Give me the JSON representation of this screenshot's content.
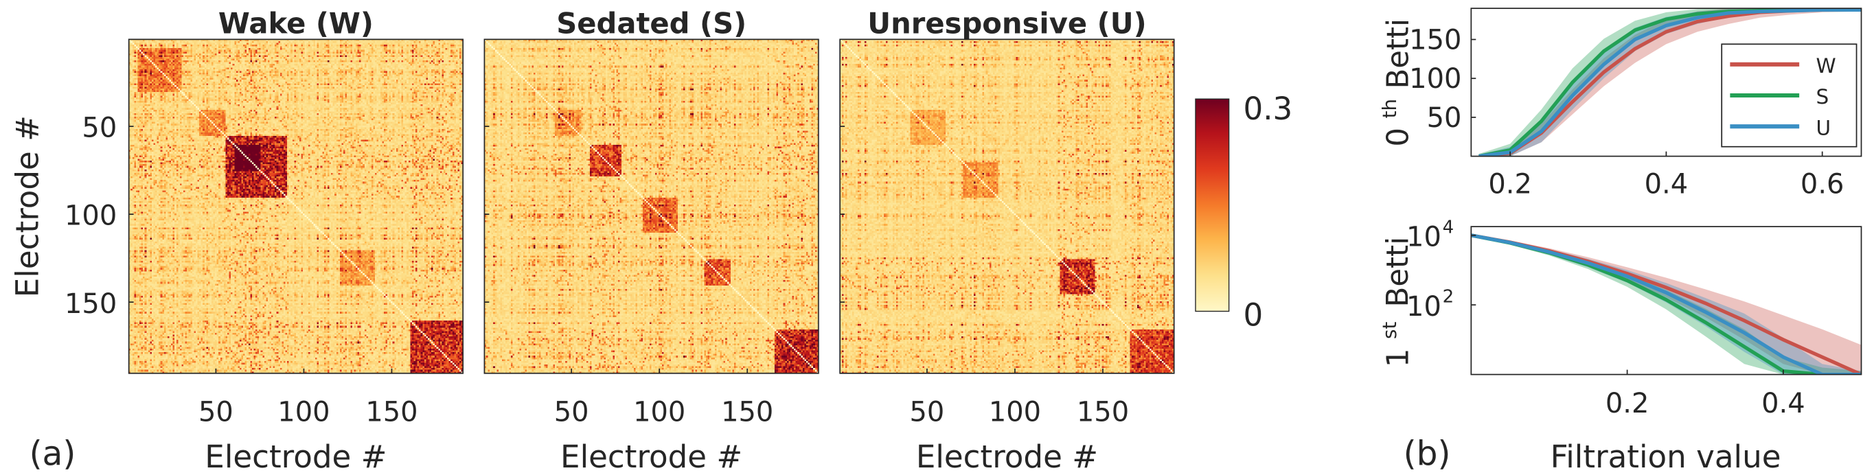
{
  "chart_data": [
    {
      "type": "heatmap",
      "panel": "(a)",
      "titles": [
        "Wake (W)",
        "Sedated (S)",
        "Unresponsive (U)"
      ],
      "xlabel": "Electrode #",
      "ylabel": "Electrode #",
      "x_ticks": [
        50,
        100,
        150
      ],
      "y_ticks": [
        50,
        100,
        150
      ],
      "n_electrodes": 190,
      "colorbar": {
        "min": 0,
        "max": 0.3,
        "tick_labels": [
          "0",
          "0.3"
        ],
        "colors": [
          "#fff8c8",
          "#fde08a",
          "#fdb44a",
          "#f57a2a",
          "#e03a1e",
          "#b5121b",
          "#6e0020"
        ]
      },
      "matrices": [
        {
          "name": "Wake (W)",
          "seed": 7,
          "blocks": [
            [
              55,
              90,
              0.26
            ],
            [
              60,
              75,
              0.22
            ],
            [
              160,
              190,
              0.24
            ],
            [
              5,
              30,
              0.14
            ],
            [
              120,
              140,
              0.1
            ],
            [
              40,
              55,
              0.12
            ]
          ]
        },
        {
          "name": "Sedated (S)",
          "seed": 23,
          "blocks": [
            [
              60,
              78,
              0.22
            ],
            [
              90,
              110,
              0.16
            ],
            [
              165,
              190,
              0.26
            ],
            [
              125,
              140,
              0.18
            ],
            [
              40,
              55,
              0.1
            ]
          ]
        },
        {
          "name": "Unresponsive (U)",
          "seed": 41,
          "blocks": [
            [
              125,
              145,
              0.24
            ],
            [
              165,
              190,
              0.2
            ],
            [
              70,
              90,
              0.1
            ],
            [
              40,
              60,
              0.08
            ]
          ]
        }
      ]
    },
    {
      "type": "area",
      "panel": "(b)",
      "ylabel": "0th Betti",
      "ylabel_main": "0",
      "ylabel_sup": "th",
      "ylabel_rest": "Betti",
      "xlim": [
        0.15,
        0.65
      ],
      "ylim": [
        0,
        190
      ],
      "x_ticks": [
        0.2,
        0.4,
        0.6
      ],
      "x_tick_labels": [
        "0.2",
        "0.4",
        "0.6"
      ],
      "y_ticks": [
        50,
        100,
        150
      ],
      "y_tick_labels": [
        "50",
        "100",
        "150"
      ],
      "legend": [
        "W",
        "S",
        "U"
      ],
      "x": [
        0.16,
        0.2,
        0.24,
        0.28,
        0.32,
        0.36,
        0.4,
        0.44,
        0.48,
        0.52,
        0.56,
        0.6,
        0.65
      ],
      "series": [
        {
          "name": "W",
          "color": "#c8524a",
          "values": [
            0,
            4,
            30,
            70,
            108,
            138,
            160,
            173,
            180,
            185,
            187,
            188,
            188
          ],
          "band": [
            2,
            6,
            12,
            16,
            18,
            18,
            16,
            13,
            10,
            7,
            5,
            3,
            2
          ]
        },
        {
          "name": "S",
          "color": "#22a055",
          "values": [
            0,
            8,
            45,
            95,
            135,
            162,
            176,
            183,
            186,
            187,
            188,
            188,
            188
          ],
          "band": [
            3,
            8,
            15,
            18,
            16,
            12,
            9,
            6,
            4,
            3,
            2,
            1,
            1
          ]
        },
        {
          "name": "U",
          "color": "#3a8fc4",
          "values": [
            0,
            5,
            32,
            78,
            118,
            150,
            168,
            178,
            184,
            186,
            187,
            188,
            188
          ],
          "band": [
            2,
            7,
            14,
            18,
            18,
            15,
            11,
            8,
            5,
            3,
            2,
            1,
            1
          ]
        }
      ]
    },
    {
      "type": "area",
      "panel": "(b)",
      "ylabel": "1st Betti",
      "ylabel_main": "1",
      "ylabel_sup": "st",
      "ylabel_rest": "Betti",
      "xlabel": "Filtration value",
      "xlim": [
        0,
        0.5
      ],
      "ylim_log10": [
        0,
        4.25
      ],
      "x_ticks": [
        0.2,
        0.4
      ],
      "x_tick_labels": [
        "0.2",
        "0.4"
      ],
      "y_ticks_log10": [
        2,
        4
      ],
      "y_tick_base": "10",
      "y_tick_exps": [
        "2",
        "4"
      ],
      "x": [
        0,
        0.05,
        0.1,
        0.15,
        0.2,
        0.25,
        0.3,
        0.35,
        0.4,
        0.45,
        0.5
      ],
      "series": [
        {
          "name": "W",
          "color": "#c8524a",
          "log10_values": [
            4.0,
            3.8,
            3.55,
            3.25,
            2.9,
            2.5,
            2.05,
            1.55,
            1.0,
            0.5,
            0.0
          ],
          "band": [
            0.02,
            0.05,
            0.08,
            0.12,
            0.18,
            0.28,
            0.4,
            0.55,
            0.7,
            0.8,
            0.85
          ]
        },
        {
          "name": "S",
          "color": "#22a055",
          "log10_values": [
            4.0,
            3.78,
            3.5,
            3.15,
            2.7,
            2.15,
            1.5,
            0.8,
            0.1,
            0.0,
            0.0
          ],
          "band": [
            0.02,
            0.05,
            0.08,
            0.12,
            0.18,
            0.28,
            0.4,
            0.5,
            0.4,
            0.2,
            0.1
          ]
        },
        {
          "name": "U",
          "color": "#3a8fc4",
          "log10_values": [
            4.0,
            3.79,
            3.52,
            3.2,
            2.82,
            2.35,
            1.8,
            1.2,
            0.5,
            0.0,
            0.0
          ],
          "band": [
            0.02,
            0.05,
            0.08,
            0.12,
            0.18,
            0.28,
            0.4,
            0.55,
            0.55,
            0.3,
            0.1
          ]
        }
      ]
    }
  ],
  "labels": {
    "panel_a": "(a)",
    "panel_b": "(b)"
  }
}
